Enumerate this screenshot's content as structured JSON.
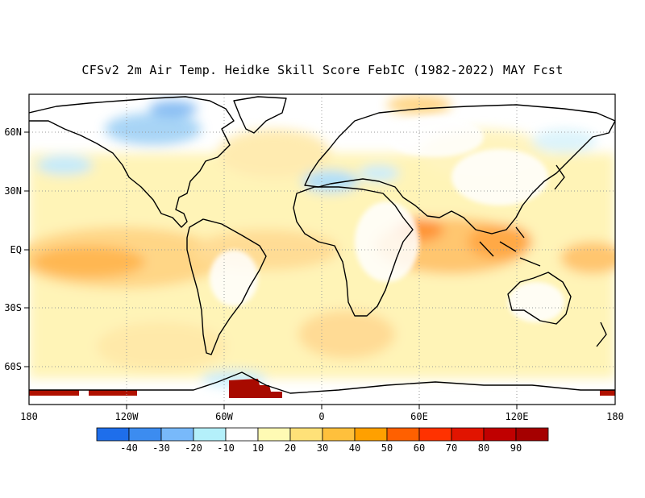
{
  "title": "CFSv2 2m Air Temp. Heidke Skill Score FebIC (1982-2022) MAY Fcst",
  "lat_labels": [
    "60N",
    "30N",
    "EQ",
    "30S",
    "60S"
  ],
  "lon_labels": [
    "180",
    "120W",
    "60W",
    "0",
    "60E",
    "120E",
    "180"
  ],
  "colorbar": {
    "tick_labels": [
      "-40",
      "-30",
      "-20",
      "-10",
      "10",
      "20",
      "30",
      "40",
      "50",
      "60",
      "70",
      "80",
      "90"
    ],
    "colors": [
      "#1e6eeb",
      "#3c8cf0",
      "#78b9fa",
      "#b4f0fa",
      "#ffffff",
      "#fffab4",
      "#ffe178",
      "#ffc03c",
      "#ffa000",
      "#ff6000",
      "#ff3200",
      "#e11400",
      "#c00000",
      "#a50000"
    ]
  },
  "map": {
    "background": "#ffffff",
    "coast_color": "#000000",
    "grid_color": "#9a9a9a"
  }
}
